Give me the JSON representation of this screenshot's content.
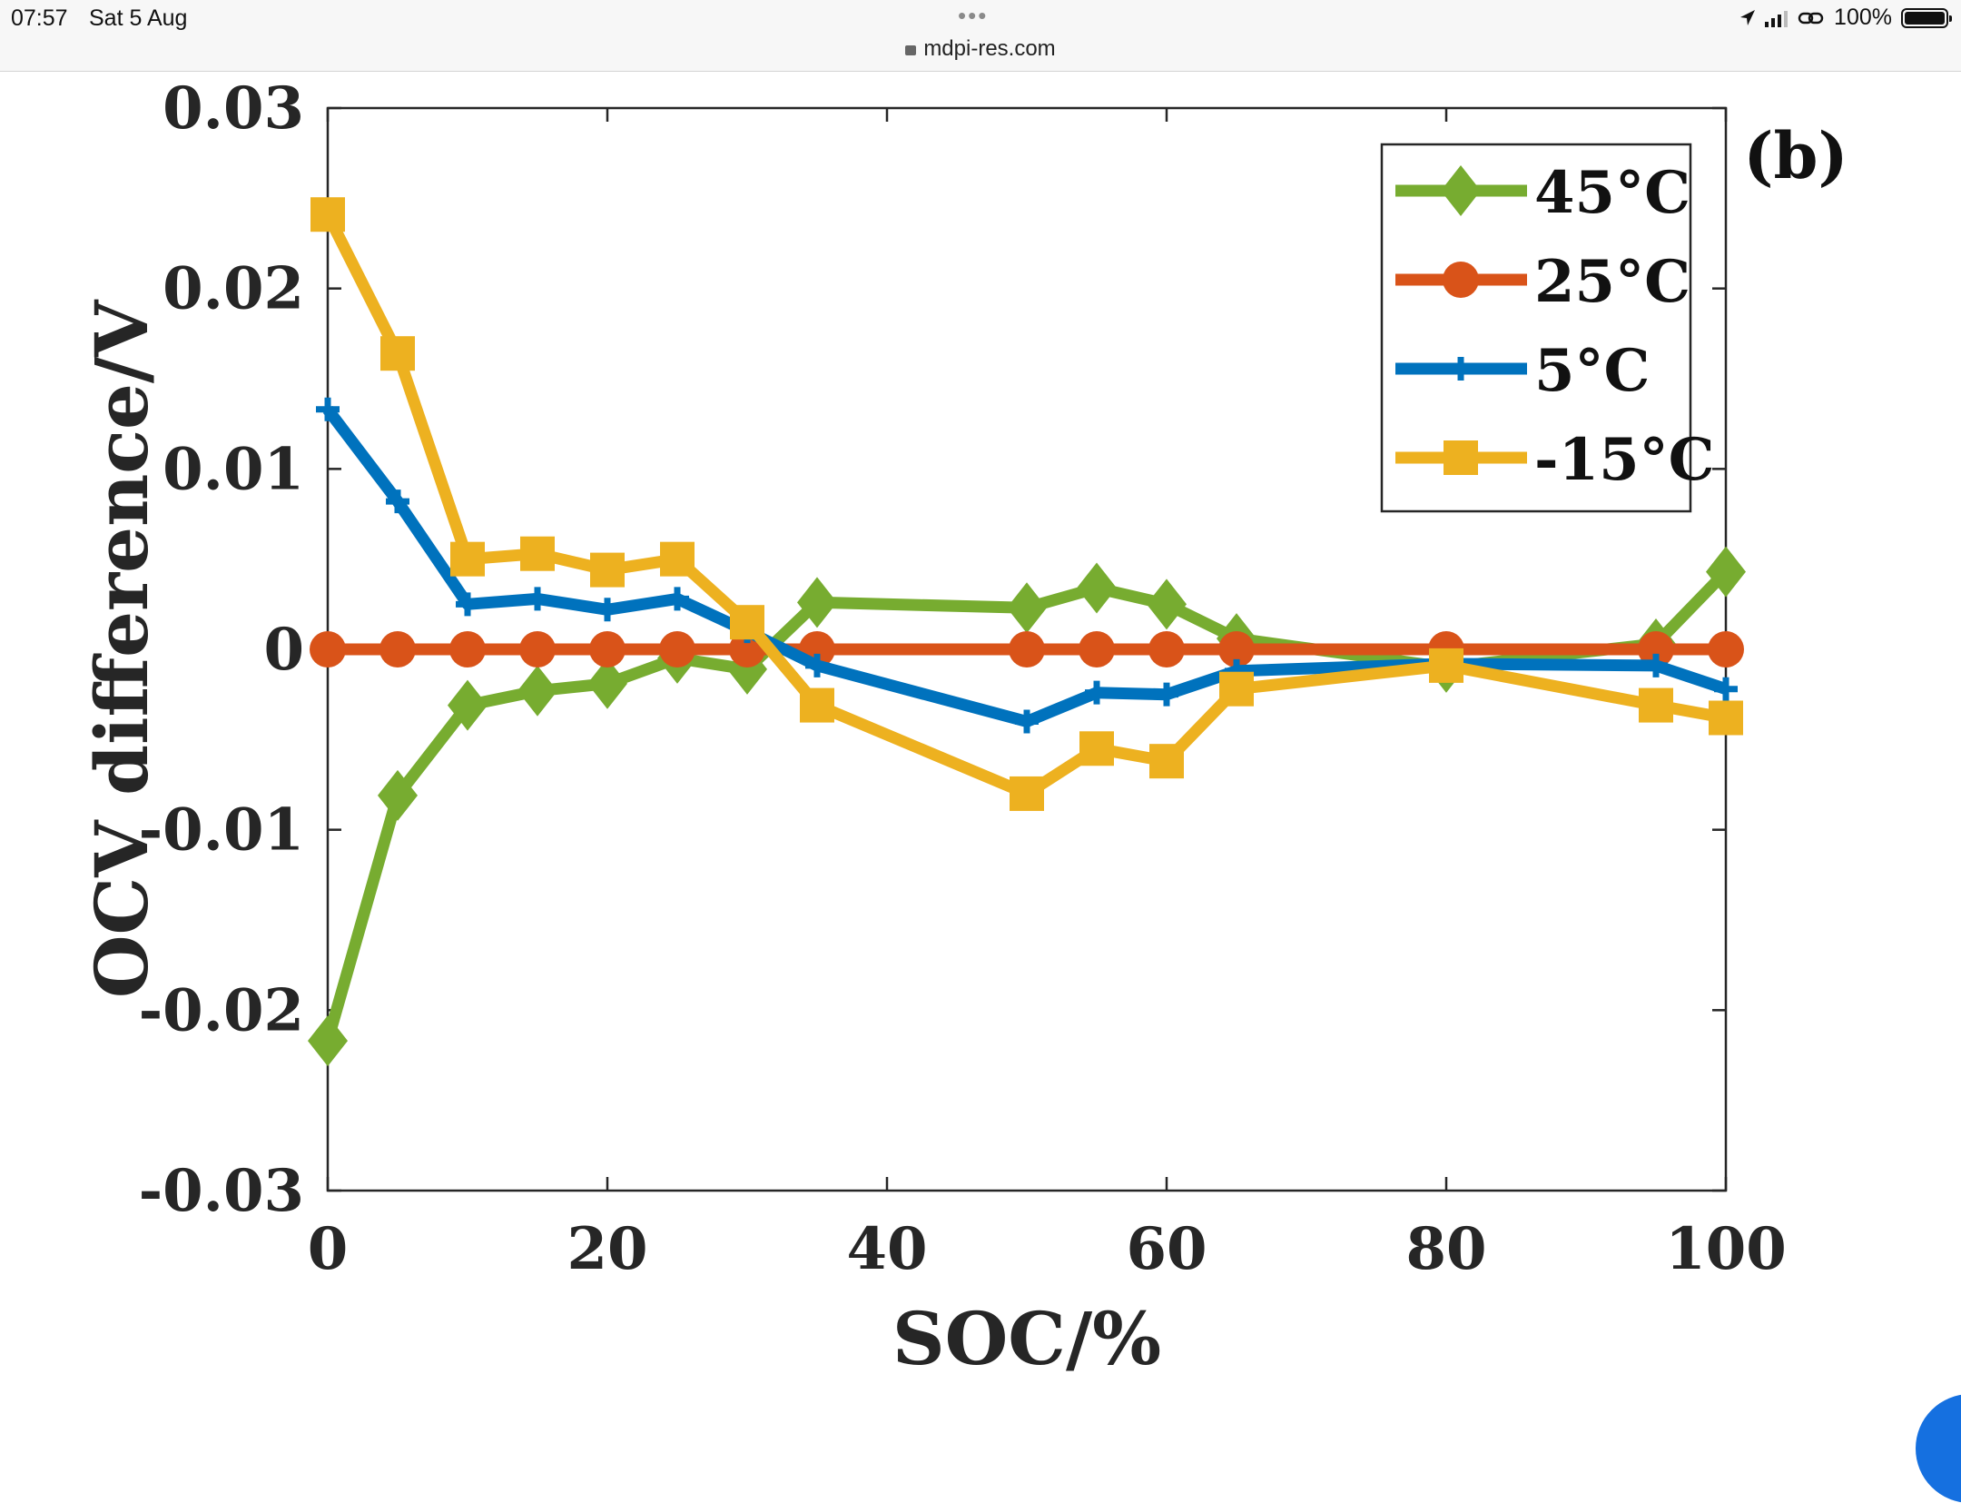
{
  "status_bar": {
    "time": "07:57",
    "date": "Sat 5 Aug",
    "url": "mdpi-res.com",
    "battery": "100%",
    "dots": "•••"
  },
  "chart_data": {
    "type": "line",
    "panel_label": "(b)",
    "title": "",
    "xlabel": "SOC/%",
    "ylabel": "OCV difference/V",
    "xlim": [
      0,
      100
    ],
    "ylim": [
      -0.03,
      0.03
    ],
    "x_ticks": [
      0,
      20,
      40,
      60,
      80,
      100
    ],
    "x_tick_labels": [
      "0",
      "20",
      "40",
      "60",
      "80",
      "100"
    ],
    "y_ticks": [
      0.03,
      0.02,
      0.01,
      0,
      -0.01,
      -0.02,
      -0.03
    ],
    "y_tick_labels": [
      "0.03",
      "0.02",
      "0.01",
      "0",
      "-0.01",
      "-0.02",
      "-0.03"
    ],
    "grid": false,
    "legend_position": "top-right",
    "series": [
      {
        "name": "45°C",
        "color": "#77ac30",
        "marker": "diamond",
        "x": [
          0,
          5,
          10,
          15,
          20,
          25,
          30,
          35,
          50,
          55,
          60,
          65,
          80,
          95,
          100
        ],
        "y": [
          -0.0217,
          -0.0081,
          -0.0031,
          -0.0023,
          -0.0019,
          -0.0005,
          -0.0011,
          0.0026,
          0.0023,
          0.0034,
          0.0025,
          0.0006,
          -0.001,
          0.0003,
          0.0043
        ]
      },
      {
        "name": "25°C",
        "color": "#d95319",
        "marker": "circle",
        "x": [
          0,
          5,
          10,
          15,
          20,
          25,
          30,
          35,
          50,
          55,
          60,
          65,
          80,
          95,
          100
        ],
        "y": [
          0,
          0,
          0,
          0,
          0,
          0,
          0,
          0,
          0,
          0,
          0,
          0,
          0,
          0,
          0
        ]
      },
      {
        "name": "5°C",
        "color": "#0072bd",
        "marker": "plus",
        "x": [
          0,
          5,
          10,
          15,
          20,
          25,
          30,
          35,
          50,
          55,
          60,
          65,
          80,
          95,
          100
        ],
        "y": [
          0.0133,
          0.0082,
          0.0025,
          0.0028,
          0.0022,
          0.0028,
          0.001,
          -0.0009,
          -0.004,
          -0.0024,
          -0.0025,
          -0.0012,
          -0.0008,
          -0.0009,
          -0.0022
        ]
      },
      {
        "name": "-15°C",
        "color": "#edb120",
        "marker": "square",
        "x": [
          0,
          5,
          10,
          15,
          20,
          25,
          30,
          35,
          50,
          55,
          60,
          65,
          80,
          95,
          100
        ],
        "y": [
          0.0241,
          0.0164,
          0.005,
          0.0053,
          0.0044,
          0.005,
          0.0015,
          -0.0031,
          -0.008,
          -0.0055,
          -0.0062,
          -0.0022,
          -0.0009,
          -0.0031,
          -0.0038
        ]
      }
    ]
  }
}
